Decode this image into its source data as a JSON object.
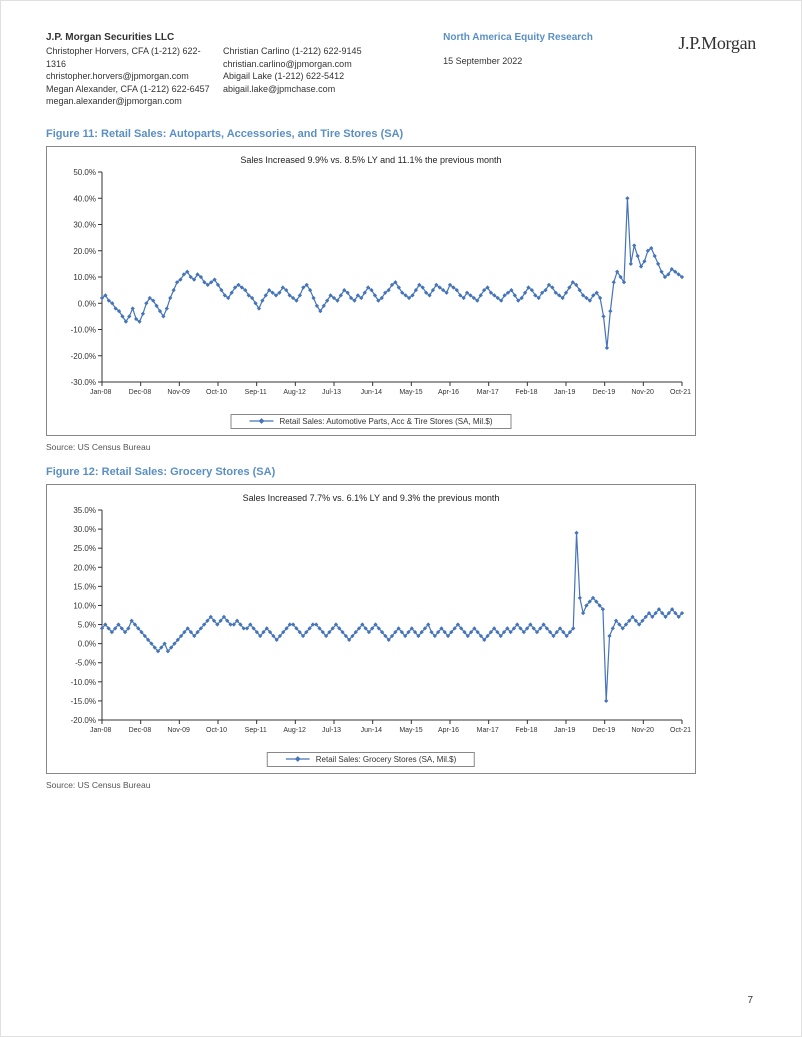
{
  "header": {
    "company": "J.P. Morgan Securities LLC",
    "analysts_col1": [
      "Christopher Horvers, CFA (1-212) 622-1316",
      "christopher.horvers@jpmorgan.com",
      "Megan Alexander, CFA (1-212) 622-6457",
      "megan.alexander@jpmorgan.com"
    ],
    "analysts_col2": [
      "Christian Carlino (1-212) 622-9145",
      "christian.carlino@jpmorgan.com",
      "Abigail Lake (1-212) 622-5412",
      "abigail.lake@jpmchase.com"
    ],
    "research_title": "North America Equity Research",
    "date": "15 September 2022",
    "logo": "J.P.Morgan"
  },
  "figure11": {
    "title": "Figure 11: Retail Sales: Autoparts, Accessories, and Tire Stores (SA)",
    "subtitle": "Sales Increased 9.9% vs. 8.5% LY and 11.1% the previous month",
    "legend": "Retail Sales: Automotive Parts, Acc & Tire Stores (SA, Mil.$)",
    "source": "Source: US Census Bureau",
    "ylim": [
      -30,
      50
    ],
    "ytick_step": 10,
    "ytick_suffix": ".0%",
    "yticks": [
      50,
      40,
      30,
      20,
      10,
      0,
      -10,
      -20,
      -30
    ],
    "xlabels": [
      "Jan-08",
      "Dec-08",
      "Nov-09",
      "Oct-10",
      "Sep-11",
      "Aug-12",
      "Jul-13",
      "Jun-14",
      "May-15",
      "Apr-16",
      "Mar-17",
      "Feb-18",
      "Jan-19",
      "Dec-19",
      "Nov-20",
      "Oct-21"
    ],
    "line_color": "#4574b8",
    "marker_color": "#4574b8",
    "values": [
      2,
      3,
      1,
      0,
      -2,
      -3,
      -5,
      -7,
      -5,
      -2,
      -6,
      -7,
      -4,
      0,
      2,
      1,
      -1,
      -3,
      -5,
      -2,
      2,
      5,
      8,
      9,
      11,
      12,
      10,
      9,
      11,
      10,
      8,
      7,
      8,
      9,
      7,
      5,
      3,
      2,
      4,
      6,
      7,
      6,
      5,
      3,
      2,
      0,
      -2,
      1,
      3,
      5,
      4,
      3,
      4,
      6,
      5,
      3,
      2,
      1,
      3,
      6,
      7,
      5,
      2,
      -1,
      -3,
      -1,
      1,
      3,
      2,
      1,
      3,
      5,
      4,
      2,
      1,
      3,
      2,
      4,
      6,
      5,
      3,
      1,
      2,
      4,
      5,
      7,
      8,
      6,
      4,
      3,
      2,
      3,
      5,
      7,
      6,
      4,
      3,
      5,
      7,
      6,
      5,
      4,
      7,
      6,
      5,
      3,
      2,
      4,
      3,
      2,
      1,
      3,
      5,
      6,
      4,
      3,
      2,
      1,
      3,
      4,
      5,
      3,
      1,
      2,
      4,
      6,
      5,
      3,
      2,
      4,
      5,
      7,
      6,
      4,
      3,
      2,
      4,
      6,
      8,
      7,
      5,
      3,
      2,
      1,
      3,
      4,
      2,
      -5,
      -17,
      -3,
      8,
      12,
      10,
      8,
      40,
      15,
      22,
      18,
      14,
      16,
      20,
      21,
      18,
      15,
      12,
      10,
      11,
      13,
      12,
      11,
      10
    ]
  },
  "figure12": {
    "title": "Figure 12: Retail Sales: Grocery Stores (SA)",
    "subtitle": "Sales Increased 7.7% vs. 6.1% LY and 9.3% the previous month",
    "legend": "Retail Sales: Grocery Stores (SA, Mil.$)",
    "source": "Source: US Census Bureau",
    "ylim": [
      -20,
      35
    ],
    "ytick_step": 5,
    "ytick_suffix": ".0%",
    "yticks": [
      35,
      30,
      25,
      20,
      15,
      10,
      5,
      0,
      -5,
      -10,
      -15,
      -20
    ],
    "xlabels": [
      "Jan-08",
      "Dec-08",
      "Nov-09",
      "Oct-10",
      "Sep-11",
      "Aug-12",
      "Jul-13",
      "Jun-14",
      "May-15",
      "Apr-16",
      "Mar-17",
      "Feb-18",
      "Jan-19",
      "Dec-19",
      "Nov-20",
      "Oct-21"
    ],
    "line_color": "#4574b8",
    "marker_color": "#4574b8",
    "values": [
      4,
      5,
      4,
      3,
      4,
      5,
      4,
      3,
      4,
      6,
      5,
      4,
      3,
      2,
      1,
      0,
      -1,
      -2,
      -1,
      0,
      -2,
      -1,
      0,
      1,
      2,
      3,
      4,
      3,
      2,
      3,
      4,
      5,
      6,
      7,
      6,
      5,
      6,
      7,
      6,
      5,
      5,
      6,
      5,
      4,
      4,
      5,
      4,
      3,
      2,
      3,
      4,
      3,
      2,
      1,
      2,
      3,
      4,
      5,
      5,
      4,
      3,
      2,
      3,
      4,
      5,
      5,
      4,
      3,
      2,
      3,
      4,
      5,
      4,
      3,
      2,
      1,
      2,
      3,
      4,
      5,
      4,
      3,
      4,
      5,
      4,
      3,
      2,
      1,
      2,
      3,
      4,
      3,
      2,
      3,
      4,
      3,
      2,
      3,
      4,
      5,
      3,
      2,
      3,
      4,
      3,
      2,
      3,
      4,
      5,
      4,
      3,
      2,
      3,
      4,
      3,
      2,
      1,
      2,
      3,
      4,
      3,
      2,
      3,
      4,
      3,
      4,
      5,
      4,
      3,
      4,
      5,
      4,
      3,
      4,
      5,
      4,
      3,
      2,
      3,
      4,
      3,
      2,
      3,
      4,
      29,
      12,
      8,
      10,
      11,
      12,
      11,
      10,
      9,
      -15,
      2,
      4,
      6,
      5,
      4,
      5,
      6,
      7,
      6,
      5,
      6,
      7,
      8,
      7,
      8,
      9,
      8,
      7,
      8,
      9,
      8,
      7,
      8
    ]
  },
  "page_number": "7"
}
